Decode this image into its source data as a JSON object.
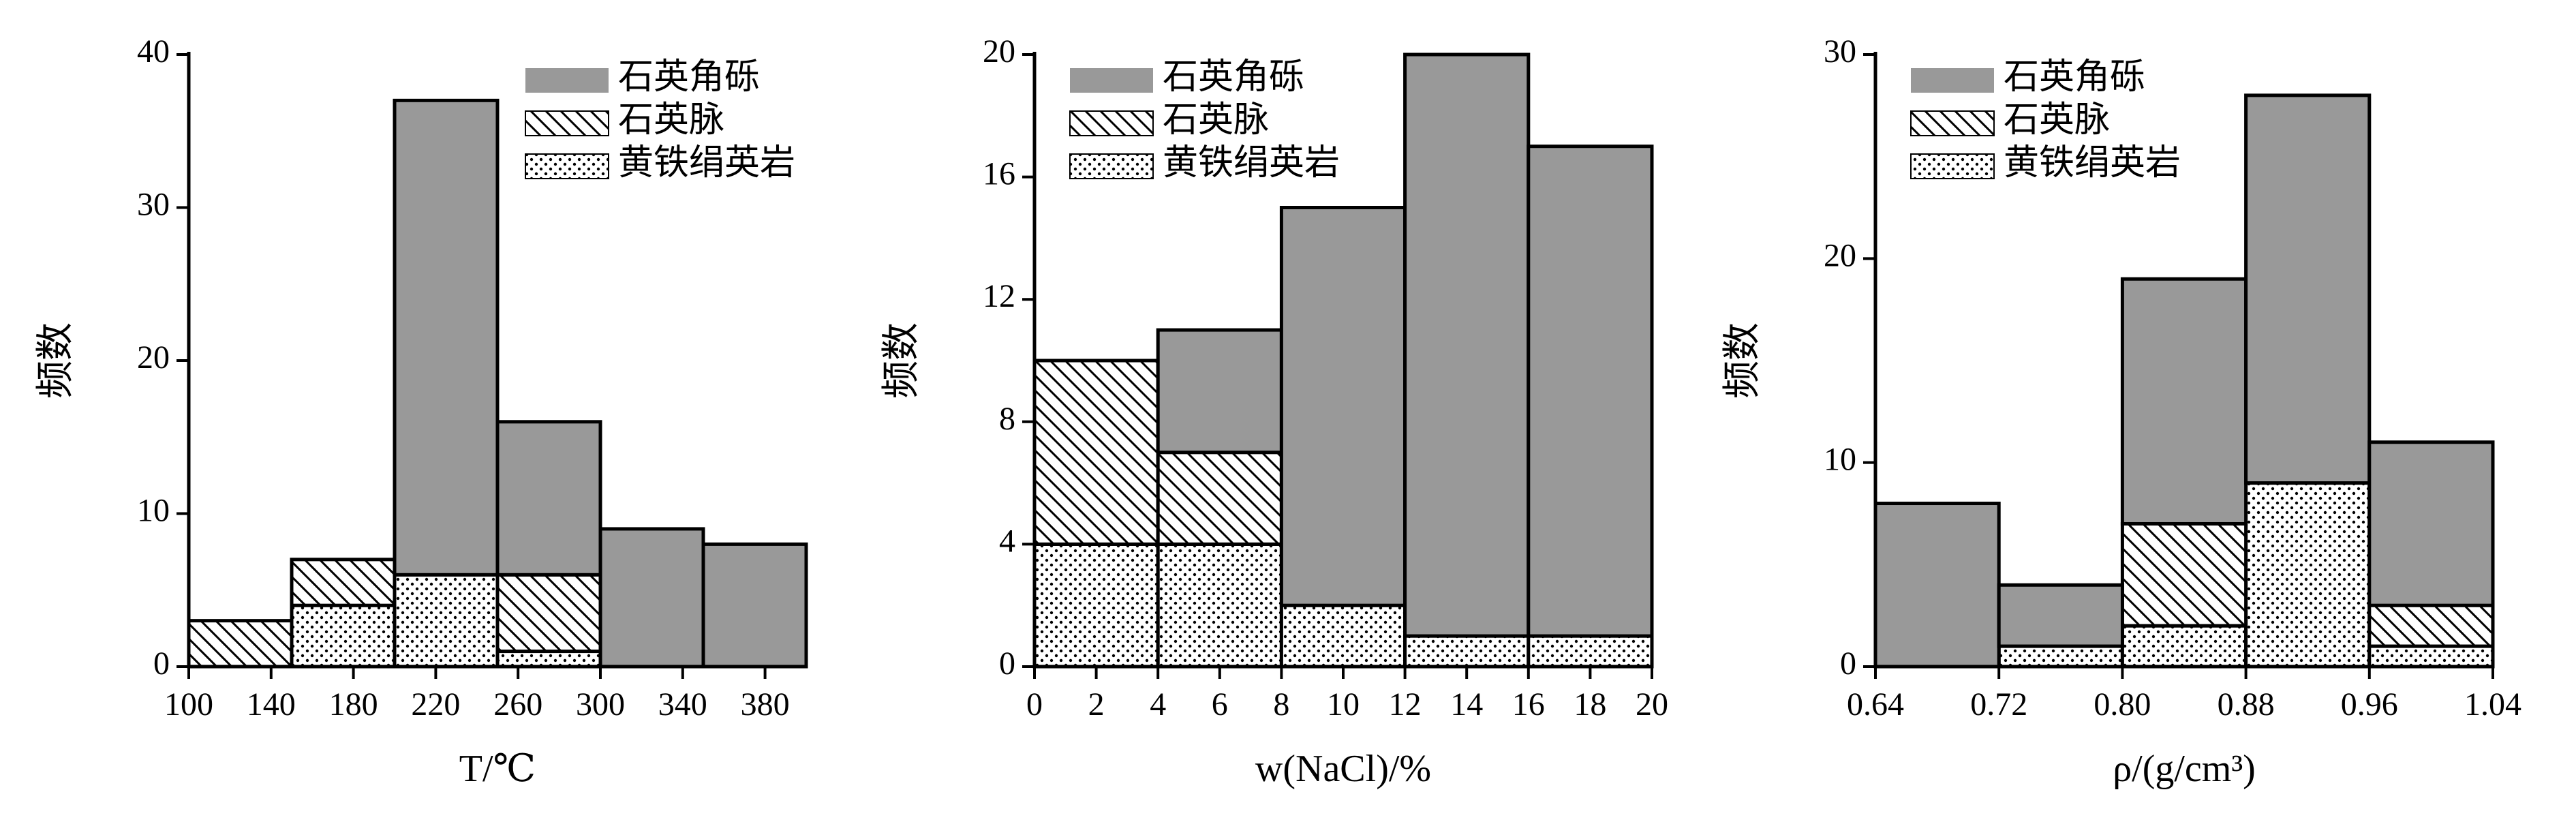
{
  "chart_data": [
    {
      "type": "histogram",
      "xlabel": "T/℃",
      "ylabel": "频数",
      "bins": [
        100,
        150,
        200,
        250,
        300,
        350,
        400
      ],
      "xlim": [
        100,
        400
      ],
      "xticks": [
        100,
        140,
        180,
        220,
        260,
        300,
        340,
        380
      ],
      "ylim": [
        0,
        40
      ],
      "yticks": [
        0,
        10,
        20,
        30,
        40
      ],
      "legend": "upper right",
      "stacked": true,
      "series": [
        {
          "name": "黄铁绢英岩",
          "color": "#ffffff",
          "pattern": "dots",
          "values": [
            0,
            4,
            6,
            1,
            0,
            0
          ]
        },
        {
          "name": "石英脉",
          "color": "#ffffff",
          "pattern": "hatch",
          "values": [
            3,
            3,
            0,
            5,
            0,
            0
          ]
        },
        {
          "name": "石英角砾",
          "color": "#999999",
          "pattern": "solid",
          "values": [
            0,
            0,
            31,
            10,
            9,
            8
          ]
        }
      ]
    },
    {
      "type": "histogram",
      "xlabel": "w(NaCl)/%",
      "ylabel": "频数",
      "bins": [
        0,
        4,
        8,
        12,
        16,
        20
      ],
      "xlim": [
        0,
        20
      ],
      "xticks": [
        0,
        2,
        4,
        6,
        8,
        10,
        12,
        14,
        16,
        18,
        20
      ],
      "ylim": [
        0,
        20
      ],
      "yticks": [
        0,
        4,
        8,
        12,
        16,
        20
      ],
      "legend": "upper left",
      "stacked": true,
      "series": [
        {
          "name": "黄铁绢英岩",
          "color": "#ffffff",
          "pattern": "dots",
          "values": [
            4,
            4,
            2,
            1,
            1
          ]
        },
        {
          "name": "石英脉",
          "color": "#ffffff",
          "pattern": "hatch",
          "values": [
            6,
            3,
            0,
            0,
            0
          ]
        },
        {
          "name": "石英角砾",
          "color": "#999999",
          "pattern": "solid",
          "values": [
            0,
            4,
            13,
            19,
            16
          ]
        }
      ]
    },
    {
      "type": "histogram",
      "xlabel": "ρ/(g/cm³)",
      "ylabel": "频数",
      "bins": [
        0.64,
        0.72,
        0.8,
        0.88,
        0.96,
        1.04
      ],
      "xlim": [
        0.64,
        1.04
      ],
      "xticks": [
        0.64,
        0.72,
        {
          "value": 0.8,
          "label": "0.80"
        },
        0.88,
        0.96,
        1.04
      ],
      "ylim": [
        0,
        30
      ],
      "yticks": [
        0,
        10,
        20,
        30
      ],
      "legend": "upper left",
      "stacked": true,
      "series": [
        {
          "name": "黄铁绢英岩",
          "color": "#ffffff",
          "pattern": "dots",
          "values": [
            0,
            1,
            2,
            9,
            1
          ]
        },
        {
          "name": "石英脉",
          "color": "#ffffff",
          "pattern": "hatch",
          "values": [
            0,
            0,
            5,
            0,
            2
          ]
        },
        {
          "name": "石英角砾",
          "color": "#999999",
          "pattern": "solid",
          "values": [
            8,
            3,
            12,
            19,
            8
          ]
        }
      ]
    }
  ]
}
